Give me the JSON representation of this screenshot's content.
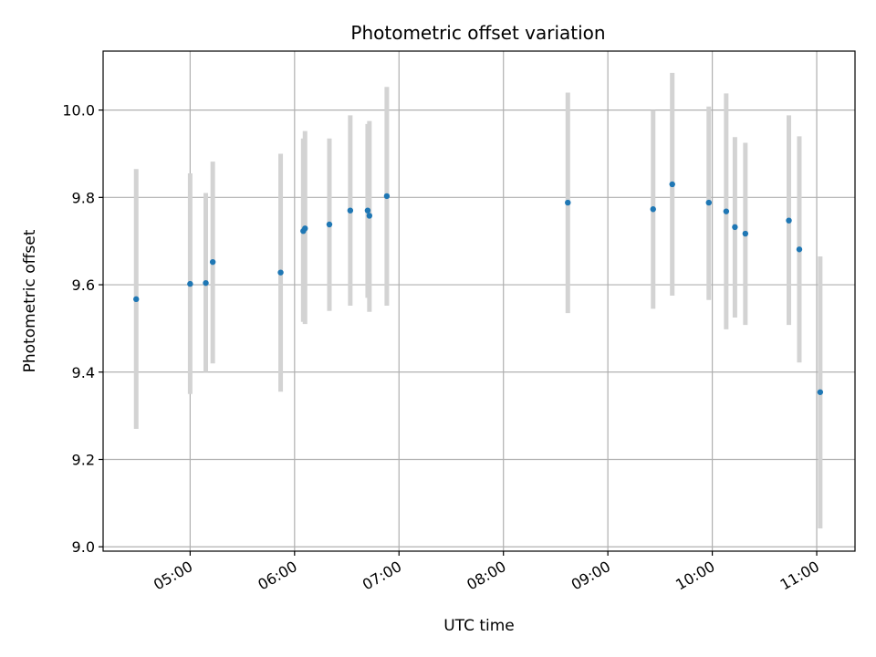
{
  "chart_data": {
    "type": "scatter",
    "title": "Photometric offset variation",
    "xlabel": "UTC time",
    "ylabel": "Photometric offset",
    "grid": true,
    "x_ticks": [
      "05:00",
      "06:00",
      "07:00",
      "08:00",
      "09:00",
      "10:00",
      "11:00"
    ],
    "y_ticks": [
      "9.0",
      "9.2",
      "9.4",
      "9.6",
      "9.8",
      "10.0"
    ],
    "xlim": [
      "04:10",
      "11:22"
    ],
    "ylim": [
      8.99,
      10.135
    ],
    "colors": {
      "point": "#1f77b4",
      "errorbar": "#d3d3d3",
      "grid": "#b0b0b0"
    },
    "series": [
      {
        "points": [
          {
            "x": "04:29",
            "y": 9.567,
            "low": 9.27,
            "high": 9.865
          },
          {
            "x": "05:00",
            "y": 9.602,
            "low": 9.35,
            "high": 9.855
          },
          {
            "x": "05:09",
            "y": 9.604,
            "low": 9.4,
            "high": 9.81
          },
          {
            "x": "05:13",
            "y": 9.652,
            "low": 9.42,
            "high": 9.882
          },
          {
            "x": "05:52",
            "y": 9.628,
            "low": 9.355,
            "high": 9.9
          },
          {
            "x": "06:05",
            "y": 9.723,
            "low": 9.515,
            "high": 9.935
          },
          {
            "x": "06:06",
            "y": 9.729,
            "low": 9.51,
            "high": 9.952
          },
          {
            "x": "06:20",
            "y": 9.738,
            "low": 9.54,
            "high": 9.935
          },
          {
            "x": "06:32",
            "y": 9.77,
            "low": 9.552,
            "high": 9.988
          },
          {
            "x": "06:42",
            "y": 9.77,
            "low": 9.57,
            "high": 9.968
          },
          {
            "x": "06:43",
            "y": 9.758,
            "low": 9.538,
            "high": 9.975
          },
          {
            "x": "06:53",
            "y": 9.803,
            "low": 9.552,
            "high": 10.053
          },
          {
            "x": "08:37",
            "y": 9.788,
            "low": 9.535,
            "high": 10.04
          },
          {
            "x": "09:26",
            "y": 9.773,
            "low": 9.545,
            "high": 10.0
          },
          {
            "x": "09:37",
            "y": 9.83,
            "low": 9.575,
            "high": 10.085
          },
          {
            "x": "09:58",
            "y": 9.788,
            "low": 9.565,
            "high": 10.008
          },
          {
            "x": "10:08",
            "y": 9.768,
            "low": 9.498,
            "high": 10.038
          },
          {
            "x": "10:13",
            "y": 9.732,
            "low": 9.525,
            "high": 9.938
          },
          {
            "x": "10:19",
            "y": 9.717,
            "low": 9.508,
            "high": 9.925
          },
          {
            "x": "10:44",
            "y": 9.747,
            "low": 9.508,
            "high": 9.988
          },
          {
            "x": "10:50",
            "y": 9.681,
            "low": 9.422,
            "high": 9.94
          },
          {
            "x": "11:02",
            "y": 9.354,
            "low": 9.042,
            "high": 9.665
          }
        ]
      }
    ]
  }
}
